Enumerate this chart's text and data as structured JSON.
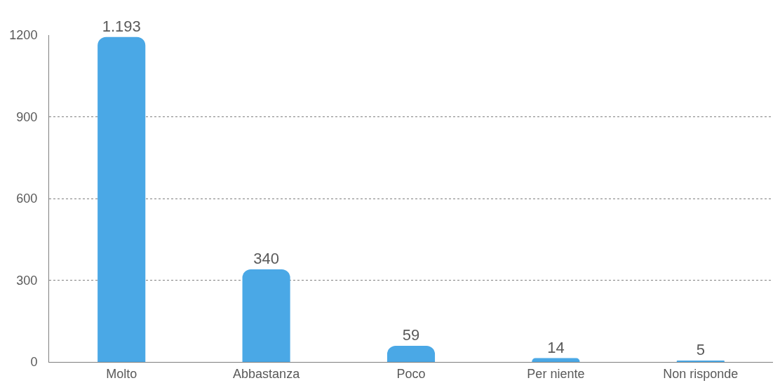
{
  "chart_data": {
    "type": "bar",
    "categories": [
      "Molto",
      "Abbastanza",
      "Poco",
      "Per niente",
      "Non risponde"
    ],
    "values": [
      1193,
      340,
      59,
      14,
      5
    ],
    "value_labels": [
      "1.193",
      "340",
      "59",
      "14",
      "5"
    ],
    "color": "#4aa8e6",
    "ylim": [
      0,
      1200
    ],
    "yticks": [
      0,
      300,
      600,
      900,
      1200
    ],
    "grid": "y",
    "legend": false
  }
}
